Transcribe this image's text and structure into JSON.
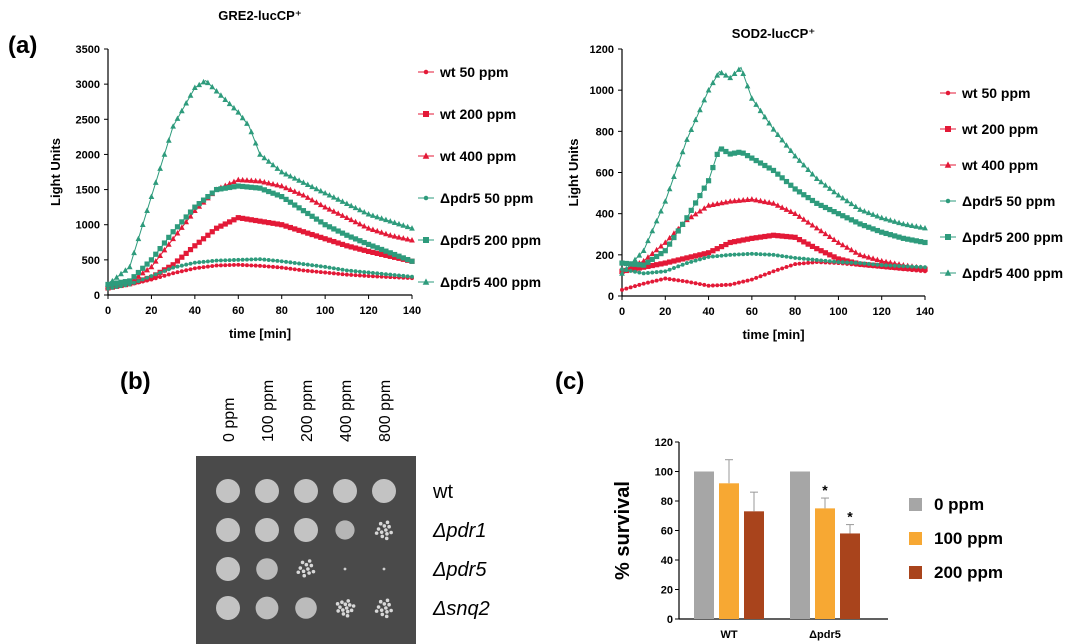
{
  "panels": {
    "a": "(a)",
    "b": "(b)",
    "c": "(c)"
  },
  "chart_data": [
    {
      "type": "line",
      "title": "GRE2-lucCP⁺",
      "xlabel": "time [min]",
      "ylabel": "Light Units",
      "xlim": [
        0,
        140
      ],
      "ylim": [
        0,
        3500
      ],
      "xticks": [
        0,
        20,
        40,
        60,
        80,
        100,
        120,
        140
      ],
      "yticks": [
        0,
        500,
        1000,
        1500,
        2000,
        2500,
        3000,
        3500
      ],
      "legend_position": "right",
      "series": [
        {
          "name": "wt 50 ppm",
          "color": "#e31937",
          "marker": "circle",
          "points": [
            [
              0,
              110
            ],
            [
              10,
              150
            ],
            [
              20,
              220
            ],
            [
              30,
              310
            ],
            [
              40,
              380
            ],
            [
              50,
              420
            ],
            [
              60,
              430
            ],
            [
              70,
              415
            ],
            [
              80,
              390
            ],
            [
              90,
              350
            ],
            [
              100,
              320
            ],
            [
              110,
              290
            ],
            [
              120,
              270
            ],
            [
              130,
              255
            ],
            [
              140,
              240
            ]
          ]
        },
        {
          "name": "wt 200 ppm",
          "color": "#e31937",
          "marker": "square",
          "points": [
            [
              0,
              100
            ],
            [
              10,
              160
            ],
            [
              20,
              250
            ],
            [
              30,
              430
            ],
            [
              40,
              700
            ],
            [
              50,
              950
            ],
            [
              60,
              1100
            ],
            [
              70,
              1050
            ],
            [
              80,
              1000
            ],
            [
              90,
              900
            ],
            [
              100,
              800
            ],
            [
              110,
              700
            ],
            [
              120,
              620
            ],
            [
              130,
              550
            ],
            [
              140,
              480
            ]
          ]
        },
        {
          "name": "wt 400 ppm",
          "color": "#e31937",
          "marker": "triangle",
          "points": [
            [
              0,
              120
            ],
            [
              10,
              180
            ],
            [
              20,
              400
            ],
            [
              30,
              800
            ],
            [
              40,
              1200
            ],
            [
              50,
              1500
            ],
            [
              60,
              1640
            ],
            [
              70,
              1620
            ],
            [
              80,
              1550
            ],
            [
              90,
              1420
            ],
            [
              100,
              1250
            ],
            [
              110,
              1100
            ],
            [
              120,
              950
            ],
            [
              130,
              850
            ],
            [
              140,
              780
            ]
          ]
        },
        {
          "name": "Δpdr5 50 ppm",
          "color": "#2e9b7c",
          "marker": "circle",
          "points": [
            [
              0,
              90
            ],
            [
              10,
              150
            ],
            [
              20,
              270
            ],
            [
              30,
              390
            ],
            [
              40,
              460
            ],
            [
              50,
              490
            ],
            [
              60,
              500
            ],
            [
              70,
              510
            ],
            [
              80,
              480
            ],
            [
              90,
              440
            ],
            [
              100,
              400
            ],
            [
              110,
              350
            ],
            [
              120,
              320
            ],
            [
              130,
              290
            ],
            [
              140,
              260
            ]
          ]
        },
        {
          "name": "Δpdr5 200 ppm",
          "color": "#2e9b7c",
          "marker": "square",
          "points": [
            [
              0,
              150
            ],
            [
              10,
              200
            ],
            [
              20,
              500
            ],
            [
              30,
              900
            ],
            [
              40,
              1250
            ],
            [
              50,
              1500
            ],
            [
              60,
              1550
            ],
            [
              70,
              1520
            ],
            [
              80,
              1400
            ],
            [
              90,
              1200
            ],
            [
              100,
              1000
            ],
            [
              110,
              850
            ],
            [
              120,
              720
            ],
            [
              130,
              600
            ],
            [
              140,
              480
            ]
          ]
        },
        {
          "name": "Δpdr5 400 ppm",
          "color": "#2e9b7c",
          "marker": "triangle",
          "points": [
            [
              0,
              150
            ],
            [
              10,
              400
            ],
            [
              20,
              1400
            ],
            [
              30,
              2400
            ],
            [
              40,
              2950
            ],
            [
              45,
              3050
            ],
            [
              50,
              2900
            ],
            [
              55,
              2750
            ],
            [
              60,
              2600
            ],
            [
              65,
              2400
            ],
            [
              70,
              2000
            ],
            [
              80,
              1750
            ],
            [
              90,
              1600
            ],
            [
              100,
              1450
            ],
            [
              110,
              1300
            ],
            [
              120,
              1150
            ],
            [
              130,
              1050
            ],
            [
              140,
              950
            ]
          ]
        }
      ]
    },
    {
      "type": "line",
      "title": "SOD2-lucCP⁺",
      "xlabel": "time [min]",
      "ylabel": "Light Units",
      "xlim": [
        0,
        140
      ],
      "ylim": [
        0,
        1200
      ],
      "xticks": [
        0,
        20,
        40,
        60,
        80,
        100,
        120,
        140
      ],
      "yticks": [
        0,
        200,
        400,
        600,
        800,
        1000,
        1200
      ],
      "legend_position": "right",
      "series": [
        {
          "name": "wt 50 ppm",
          "color": "#e31937",
          "marker": "circle",
          "points": [
            [
              0,
              30
            ],
            [
              10,
              60
            ],
            [
              20,
              85
            ],
            [
              30,
              70
            ],
            [
              40,
              50
            ],
            [
              50,
              55
            ],
            [
              60,
              80
            ],
            [
              70,
              120
            ],
            [
              80,
              155
            ],
            [
              90,
              165
            ],
            [
              100,
              160
            ],
            [
              110,
              150
            ],
            [
              120,
              140
            ],
            [
              130,
              130
            ],
            [
              140,
              120
            ]
          ]
        },
        {
          "name": "wt 200 ppm",
          "color": "#e31937",
          "marker": "square",
          "points": [
            [
              0,
              120
            ],
            [
              10,
              140
            ],
            [
              20,
              160
            ],
            [
              30,
              185
            ],
            [
              40,
              210
            ],
            [
              50,
              260
            ],
            [
              60,
              280
            ],
            [
              70,
              295
            ],
            [
              80,
              285
            ],
            [
              90,
              230
            ],
            [
              100,
              180
            ],
            [
              110,
              155
            ],
            [
              120,
              145
            ],
            [
              130,
              135
            ],
            [
              140,
              130
            ]
          ]
        },
        {
          "name": "wt 400 ppm",
          "color": "#e31937",
          "marker": "triangle",
          "points": [
            [
              0,
              120
            ],
            [
              10,
              170
            ],
            [
              20,
              260
            ],
            [
              30,
              370
            ],
            [
              40,
              440
            ],
            [
              50,
              460
            ],
            [
              60,
              470
            ],
            [
              70,
              450
            ],
            [
              80,
              400
            ],
            [
              90,
              330
            ],
            [
              100,
              260
            ],
            [
              110,
              200
            ],
            [
              120,
              170
            ],
            [
              130,
              150
            ],
            [
              140,
              135
            ]
          ]
        },
        {
          "name": "Δpdr5 50 ppm",
          "color": "#2e9b7c",
          "marker": "circle",
          "points": [
            [
              0,
              130
            ],
            [
              10,
              110
            ],
            [
              20,
              120
            ],
            [
              30,
              160
            ],
            [
              40,
              190
            ],
            [
              50,
              200
            ],
            [
              60,
              205
            ],
            [
              70,
              200
            ],
            [
              80,
              185
            ],
            [
              90,
              175
            ],
            [
              100,
              165
            ],
            [
              110,
              160
            ],
            [
              120,
              150
            ],
            [
              130,
              145
            ],
            [
              140,
              140
            ]
          ]
        },
        {
          "name": "Δpdr5 200 ppm",
          "color": "#2e9b7c",
          "marker": "square",
          "points": [
            [
              0,
              160
            ],
            [
              10,
              150
            ],
            [
              20,
              220
            ],
            [
              30,
              380
            ],
            [
              40,
              560
            ],
            [
              45,
              720
            ],
            [
              50,
              690
            ],
            [
              55,
              700
            ],
            [
              60,
              670
            ],
            [
              70,
              610
            ],
            [
              80,
              520
            ],
            [
              90,
              450
            ],
            [
              100,
              400
            ],
            [
              110,
              350
            ],
            [
              120,
              310
            ],
            [
              130,
              280
            ],
            [
              140,
              260
            ]
          ]
        },
        {
          "name": "Δpdr5 400 ppm",
          "color": "#2e9b7c",
          "marker": "triangle",
          "points": [
            [
              0,
              110
            ],
            [
              10,
              220
            ],
            [
              20,
              460
            ],
            [
              30,
              760
            ],
            [
              40,
              1000
            ],
            [
              45,
              1090
            ],
            [
              50,
              1060
            ],
            [
              55,
              1110
            ],
            [
              60,
              960
            ],
            [
              70,
              810
            ],
            [
              80,
              680
            ],
            [
              90,
              570
            ],
            [
              100,
              490
            ],
            [
              110,
              420
            ],
            [
              120,
              380
            ],
            [
              130,
              350
            ],
            [
              140,
              330
            ]
          ]
        }
      ]
    },
    {
      "type": "bar",
      "title": "",
      "xlabel": "",
      "ylabel": "% survival",
      "ylim": [
        0,
        120
      ],
      "yticks": [
        0,
        20,
        40,
        60,
        80,
        100,
        120
      ],
      "categories": [
        "WT",
        "Δpdr5"
      ],
      "legend_position": "right",
      "series": [
        {
          "name": "0 ppm",
          "color": "#a6a6a6",
          "values": [
            100,
            100
          ],
          "errors": [
            0,
            0
          ],
          "significance": [
            "",
            ""
          ]
        },
        {
          "name": "100 ppm",
          "color": "#f7a833",
          "values": [
            92,
            75
          ],
          "errors": [
            16,
            7
          ],
          "significance": [
            "",
            "*"
          ]
        },
        {
          "name": "200 ppm",
          "color": "#a9441c",
          "values": [
            73,
            58
          ],
          "errors": [
            13,
            6
          ],
          "significance": [
            "",
            "*"
          ]
        }
      ]
    }
  ],
  "spot_assay": {
    "concentrations": [
      "0 ppm",
      "100 ppm",
      "200 ppm",
      "400 ppm",
      "800 ppm"
    ],
    "strains": [
      "wt",
      "Δpdr1",
      "Δpdr5",
      "Δsnq2"
    ],
    "growth_levels": [
      [
        1.0,
        1.0,
        1.0,
        1.0,
        1.0
      ],
      [
        1.0,
        1.0,
        1.0,
        0.75,
        0.45
      ],
      [
        1.0,
        0.85,
        0.35,
        0.05,
        0.02
      ],
      [
        1.0,
        0.9,
        0.85,
        0.6,
        0.4
      ]
    ]
  }
}
